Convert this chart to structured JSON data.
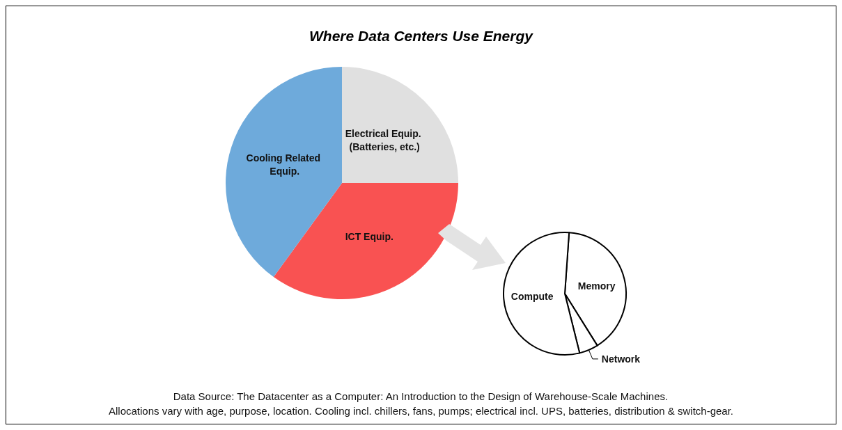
{
  "chart_data": [
    {
      "type": "pie",
      "title": "Where Data Centers Use Energy",
      "categories": [
        "Electrical Equip. (Batteries, etc.)",
        "ICT Equip.",
        "Cooling Related Equip."
      ],
      "values": [
        25,
        35,
        40
      ],
      "colors": [
        "#e0e0e0",
        "#f95252",
        "#6eaadb"
      ],
      "annotations": [
        "Data Source: The Datacenter as a Computer: An Introduction to the Design of Warehouse-Scale Machines.",
        "Allocations vary with age, purpose, location. Cooling incl. chillers, fans, pumps; electrical incl. UPS, batteries, distribution & switch-gear."
      ]
    },
    {
      "type": "pie",
      "categories": [
        "Memory",
        "Network",
        "Compute"
      ],
      "values": [
        40,
        5,
        55
      ],
      "colors": [
        "#ffffff",
        "#ffffff",
        "#ffffff"
      ]
    }
  ]
}
